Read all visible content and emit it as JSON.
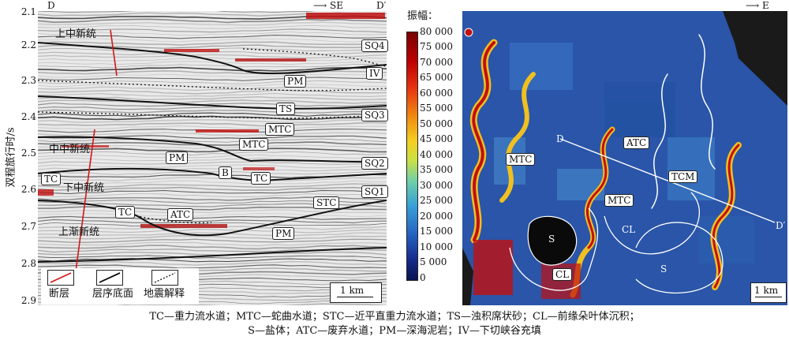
{
  "left_panel": {
    "corner_left": "D",
    "direction": "SE",
    "corner_right": "D′",
    "y_axis_label": "双程旅行时/s",
    "y_ticks": [
      "2.1",
      "2.2",
      "2.3",
      "2.4",
      "2.5",
      "2.6",
      "2.7",
      "2.8",
      "2.9"
    ],
    "sequence_labels": [
      "SQ4",
      "SQ3",
      "SQ2",
      "SQ1"
    ],
    "stratigraphy": [
      "上中新统",
      "中中新统",
      "下中新统",
      "上渐新统"
    ],
    "facies_labels": [
      "PM",
      "TS",
      "MTC",
      "MTC",
      "PM",
      "B",
      "TC",
      "TC",
      "TC",
      "ATC",
      "STC",
      "PM",
      "IV"
    ],
    "legend": [
      "断层",
      "层序底面",
      "地震解释"
    ],
    "scale_bar": "1 km"
  },
  "right_panel": {
    "direction": "E",
    "colorbar_title": "振幅：",
    "colorbar_ticks": [
      "80 000",
      "75 000",
      "70 000",
      "65 000",
      "60 000",
      "55 000",
      "50 000",
      "45 000",
      "40 000",
      "35 000",
      "30 000",
      "25 000",
      "20 000",
      "15 000",
      "10 000",
      "5 000",
      "0"
    ],
    "map_labels": [
      "MTC",
      "ATC",
      "TCM",
      "MTC",
      "CL",
      "S",
      "CL",
      "S"
    ],
    "section_start": "D",
    "section_end": "D′",
    "scale_bar": "1 km"
  },
  "caption": [
    "TC—重力流水道；MTC—蛇曲水道；STC—近平直重力流水道；TS—浊积席状砂；CL—前缘朵叶体沉积；",
    "S—盐体；ATC—废弃水道；PM—深海泥岩；IV—下切峡谷充填"
  ],
  "colors": {
    "fault": "#d01818",
    "horizon": "#111111",
    "map_background": "#2a55a8"
  }
}
